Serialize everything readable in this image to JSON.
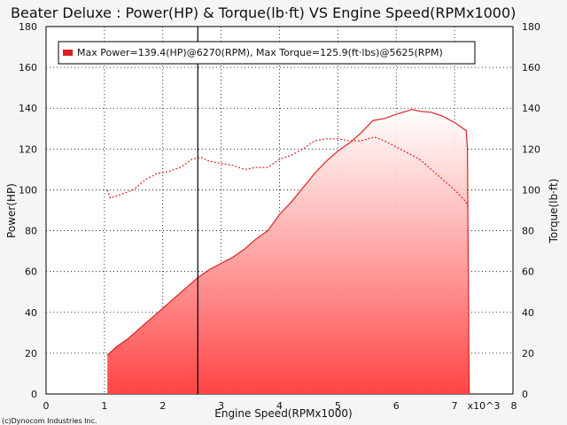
{
  "chart_data": {
    "type": "area",
    "title": "Beater Deluxe : Power(HP) & Torque(lb·ft) VS Engine Speed(RPMx1000)",
    "xlabel": "Engine Speed(RPMx1000)",
    "ylabel_left": "Power(HP)",
    "ylabel_right": "Torque(lb·ft)",
    "x_multiplier_label": "x10^3",
    "xlim": [
      0,
      8
    ],
    "ylim": [
      0,
      180
    ],
    "x_ticks": [
      "0",
      "1",
      "2",
      "3",
      "4",
      "5",
      "6",
      "7",
      "8"
    ],
    "y_ticks": [
      "0",
      "20",
      "40",
      "60",
      "80",
      "100",
      "120",
      "140",
      "160",
      "180"
    ],
    "grid": true,
    "legend_position": "top-left",
    "legend": "Max Power=139.4(HP)@6270(RPM), Max Torque=125.9(ft·lbs)@5625(RPM)",
    "cursor_x": 2.6,
    "credit": "(c)Dynocom Industries Inc.",
    "colors": {
      "power": "#dd2222",
      "torque": "#dd2222",
      "fill_top": "#ffffff",
      "fill_bottom": "#ff4444",
      "cursor": "#000000"
    },
    "series": [
      {
        "name": "Power(HP)",
        "style": "solid-filled",
        "x": [
          1.05,
          1.2,
          1.4,
          1.6,
          1.8,
          2.0,
          2.2,
          2.4,
          2.6,
          2.8,
          3.0,
          3.2,
          3.4,
          3.6,
          3.8,
          4.0,
          4.2,
          4.4,
          4.6,
          4.8,
          5.0,
          5.2,
          5.4,
          5.6,
          5.8,
          6.0,
          6.27,
          6.4,
          6.6,
          6.8,
          7.0,
          7.2,
          7.22,
          7.25
        ],
        "values": [
          19,
          23,
          27,
          32,
          37,
          42,
          47,
          52,
          57,
          61,
          64,
          67,
          71,
          76,
          80,
          88,
          94,
          101,
          108,
          114,
          119,
          123,
          128,
          134,
          135,
          137,
          139.4,
          138.5,
          138,
          136,
          133,
          129,
          120,
          0
        ]
      },
      {
        "name": "Torque(lb·ft)",
        "style": "dashed",
        "x": [
          1.05,
          1.1,
          1.3,
          1.5,
          1.7,
          1.9,
          2.1,
          2.3,
          2.5,
          2.65,
          2.8,
          3.0,
          3.2,
          3.4,
          3.6,
          3.8,
          4.0,
          4.2,
          4.4,
          4.6,
          4.8,
          5.0,
          5.2,
          5.4,
          5.625,
          5.8,
          6.0,
          6.2,
          6.4,
          6.6,
          6.8,
          7.0,
          7.2,
          7.22
        ],
        "values": [
          100,
          96,
          98,
          100,
          105,
          108,
          109,
          111,
          115,
          116,
          114,
          113,
          112,
          110,
          111,
          111,
          115,
          117,
          120,
          124,
          125,
          125,
          124,
          124,
          125.9,
          124,
          121,
          118,
          115,
          110,
          105,
          100,
          94,
          92
        ]
      }
    ]
  }
}
